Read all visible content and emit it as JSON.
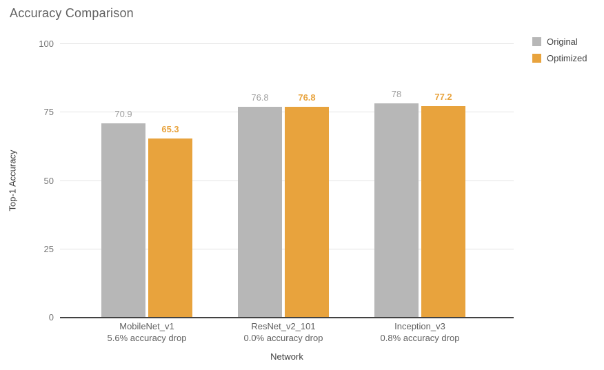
{
  "title": "Accuracy Comparison",
  "chart_data": {
    "type": "bar",
    "title": "Accuracy Comparison",
    "xlabel": "Network",
    "ylabel": "Top-1 Accuracy",
    "ylim": [
      0,
      100
    ],
    "yticks": [
      0,
      25,
      50,
      75,
      100
    ],
    "grid": true,
    "legend_position": "top-right",
    "categories": [
      "MobileNet_v1",
      "ResNet_v2_101",
      "Inception_v3"
    ],
    "category_sublabels": [
      "5.6% accuracy drop",
      "0.0% accuracy drop",
      "0.8% accuracy drop"
    ],
    "series": [
      {
        "name": "Original",
        "color": "#b7b7b7",
        "label_color": "#a0a0a0",
        "label_weight": "normal",
        "values": [
          70.9,
          76.8,
          78
        ]
      },
      {
        "name": "Optimized",
        "color": "#e8a33d",
        "label_color": "#e8a33d",
        "label_weight": "bold",
        "values": [
          65.3,
          76.8,
          77.2
        ]
      }
    ]
  },
  "colors": {
    "gridline": "#e3e3e3",
    "axis_line": "#424242",
    "title_text": "#616161",
    "tick_text": "#757575",
    "category_text": "#616161",
    "axis_title_text": "#3c3c3c",
    "legend_text": "#424242",
    "background": "#ffffff"
  }
}
